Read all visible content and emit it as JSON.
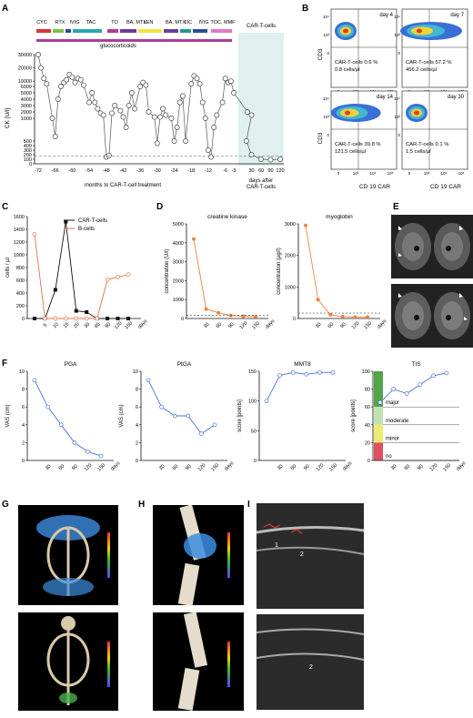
{
  "panels": {
    "A": {
      "letter": "A",
      "treatments": [
        {
          "label": "CYC",
          "color": "#d6363a"
        },
        {
          "label": "RTX",
          "color": "#7ac143"
        },
        {
          "label": "IVIG",
          "color": "#2a4d9b"
        },
        {
          "label": "TAC",
          "color": "#2aa8a8"
        },
        {
          "label": "TO",
          "color": "#b53a8c"
        },
        {
          "label": "BA, MTX",
          "color": "#6a3d9a"
        },
        {
          "label": "LEN",
          "color": "#f0e442"
        },
        {
          "label": "BA, MTX",
          "color": "#6a3d9a"
        },
        {
          "label": "OC",
          "color": "#1f9e89"
        },
        {
          "label": "IVIG",
          "color": "#2a4d9b"
        },
        {
          "label": "TOC, MMF",
          "color": "#e377c2"
        }
      ],
      "glucocorticoids_label": "glucocorticoids",
      "cart_label": "CAR-T-cells",
      "ylabel": "CK [U/l]",
      "xlabel_left": "months to CAR-T-cell treatment",
      "xlabel_right": "days after CAR-T-cells",
      "yticks": [
        "30000",
        "20000",
        "10000",
        "6000",
        "5000",
        "4000",
        "3000",
        "2000",
        "1000",
        "500",
        "400",
        "300",
        "200",
        "100",
        "0"
      ],
      "xticks_left": [
        "-72",
        "-66",
        "-60",
        "-54",
        "-48",
        "-42",
        "-36",
        "-30",
        "-24",
        "-18",
        "-12",
        "-6",
        "-3"
      ],
      "xticks_right": [
        "30",
        "60",
        "90",
        "120"
      ]
    },
    "B": {
      "letter": "B",
      "ylabel": "CD3",
      "xlabel": "CD 19 CAR",
      "plots": [
        {
          "day": "day 4",
          "text1": "CAR-T-cells 0.6 %",
          "text2": "0.8 cells/µl"
        },
        {
          "day": "day 7",
          "text1": "CAR-T-cells 57.2 %",
          "text2": "456.2 cells/µl"
        },
        {
          "day": "day 14",
          "text1": "CAR-T-cells 39.8 %",
          "text2": "121.5 cells/µl"
        },
        {
          "day": "day 30",
          "text1": "CAR-T-cells 0.1 %",
          "text2": "1,5 cells/µl"
        }
      ],
      "yticks": [
        "10⁴",
        "10³",
        "0"
      ],
      "xticks": [
        "0",
        "10³",
        "10⁴",
        "10⁵"
      ]
    },
    "C": {
      "letter": "C"
    },
    "D": {
      "letter": "D"
    },
    "E": {
      "letter": "E"
    },
    "F": {
      "letter": "F"
    },
    "G": {
      "letter": "G"
    },
    "H": {
      "letter": "H"
    },
    "I": {
      "letter": "I",
      "labels": [
        "1",
        "2",
        "2"
      ]
    }
  },
  "chart_data": [
    {
      "id": "A",
      "type": "line",
      "title": "",
      "ylabel": "CK [U/l]",
      "xlabel": "months to CAR-T-cell treatment / days after CAR-T-cells",
      "x": [
        -72,
        -71,
        -70,
        -69,
        -67,
        -66,
        -65,
        -64,
        -63,
        -62,
        -61,
        -60,
        -59,
        -58,
        -57,
        -56,
        -54,
        -53,
        -52,
        -51,
        -50,
        -49,
        -48,
        -47,
        -46,
        -45,
        -43,
        -42,
        -41,
        -40,
        -39,
        -38,
        -36,
        -35,
        -34,
        -33,
        -31,
        -30,
        -29,
        -28,
        -27,
        -25,
        -24,
        -23,
        -22,
        -21,
        -20,
        -18,
        -17,
        -16,
        -15,
        -14,
        -13,
        -12,
        -11,
        -10,
        -9,
        -7,
        -6,
        -5,
        -4,
        -3,
        4,
        7,
        14,
        30,
        60,
        90,
        120
      ],
      "y": [
        30000,
        20000,
        12000,
        8000,
        1000,
        600,
        4000,
        6000,
        9000,
        11000,
        15000,
        13000,
        9000,
        12000,
        11000,
        7000,
        3500,
        5000,
        3500,
        2500,
        1800,
        1500,
        150,
        180,
        1800,
        3000,
        2200,
        1200,
        800,
        3000,
        5000,
        2500,
        6000,
        9000,
        7000,
        2000,
        1200,
        450,
        1200,
        2500,
        1500,
        1000,
        500,
        800,
        3500,
        4500,
        500,
        8000,
        14000,
        12000,
        8000,
        3500,
        1000,
        300,
        150,
        800,
        1500,
        3500,
        12000,
        9000,
        10000,
        5000,
        2000,
        1500,
        500,
        200,
        100,
        90,
        100
      ],
      "ylim": [
        0,
        30000
      ],
      "threshold": 170
    },
    {
      "id": "C",
      "type": "line",
      "ylabel": "cells / µl",
      "xlabel": "days",
      "categories": [
        "0",
        "5",
        "10",
        "15",
        "20",
        "30",
        "60",
        "90",
        "120",
        "150"
      ],
      "series": [
        {
          "name": "CAR-T-cells",
          "values": [
            0,
            0,
            450,
            1520,
            120,
            100,
            0,
            0,
            0,
            0
          ],
          "color": "#111111"
        },
        {
          "name": "B-cells",
          "values": [
            1320,
            0,
            0,
            0,
            0,
            0,
            0,
            610,
            650,
            690
          ],
          "color": "#e1714a"
        }
      ],
      "ylim": [
        0,
        1600
      ],
      "yticks": [
        "1600",
        "1400",
        "1200",
        "1000",
        "800",
        "600",
        "400",
        "200",
        "0"
      ]
    },
    {
      "id": "D1",
      "type": "line",
      "title": "creatine kinase",
      "ylabel": "concentration (U/l)",
      "xlabel": "days",
      "x": [
        0,
        30,
        60,
        90,
        120,
        150
      ],
      "y": [
        4200,
        500,
        300,
        160,
        120,
        100
      ],
      "ylim": [
        0,
        5000
      ],
      "yticks": [
        "5000",
        "4000",
        "3000",
        "2000",
        "1000",
        "0"
      ],
      "color": "#e9833c"
    },
    {
      "id": "D2",
      "type": "line",
      "title": "myoglobin",
      "ylabel": "concentration (µg/l)",
      "xlabel": "days",
      "x": [
        0,
        30,
        60,
        90,
        120,
        150
      ],
      "y": [
        2950,
        600,
        120,
        60,
        50,
        50
      ],
      "ylim": [
        0,
        3000
      ],
      "yticks": [
        "3000",
        "2000",
        "1000",
        "0"
      ],
      "color": "#e9833c"
    },
    {
      "id": "F1",
      "type": "line",
      "title": "PGA",
      "ylabel": "VAS (cm)",
      "xlabel": "days",
      "x": [
        0,
        30,
        60,
        90,
        120,
        150
      ],
      "y": [
        9,
        6,
        4,
        2,
        1,
        0.5
      ],
      "ylim": [
        0,
        10
      ],
      "yticks": [
        "10",
        "8",
        "6",
        "4",
        "2",
        "0"
      ],
      "color": "#4a6fdc"
    },
    {
      "id": "F2",
      "type": "line",
      "title": "PtGA",
      "ylabel": "VAS (cm)",
      "xlabel": "days",
      "x": [
        0,
        30,
        60,
        90,
        120,
        150
      ],
      "y": [
        9,
        6,
        5,
        5,
        3,
        4
      ],
      "ylim": [
        0,
        10
      ],
      "yticks": [
        "10",
        "8",
        "6",
        "4",
        "2",
        "0"
      ],
      "color": "#4a6fdc"
    },
    {
      "id": "F3",
      "type": "line",
      "title": "MMT8",
      "ylabel": "score [points]",
      "xlabel": "days",
      "x": [
        0,
        30,
        60,
        90,
        120,
        150
      ],
      "y": [
        100,
        143,
        148,
        145,
        148,
        148
      ],
      "ylim": [
        0,
        150
      ],
      "yticks": [
        "150",
        "100",
        "50",
        "0"
      ],
      "color": "#4a6fdc"
    },
    {
      "id": "F4",
      "type": "line",
      "title": "TIS",
      "ylabel": "score [points]",
      "xlabel": "days",
      "x": [
        0,
        30,
        60,
        90,
        120,
        150
      ],
      "y": [
        65,
        80,
        75,
        85,
        95,
        98
      ],
      "ylim": [
        0,
        100
      ],
      "yticks": [
        "100",
        "80",
        "60",
        "40",
        "20",
        "0"
      ],
      "color": "#4a6fdc",
      "bands": [
        "major",
        "moderate",
        "minor",
        "no"
      ]
    }
  ]
}
